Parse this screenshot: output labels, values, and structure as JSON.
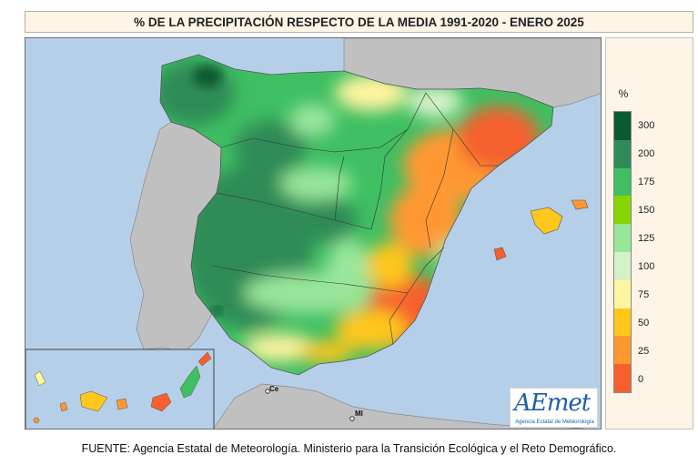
{
  "title": "% DE LA PRECIPITACIÓN RESPECTO DE LA MEDIA 1991-2020 - ENERO 2025",
  "source": "FUENTE: Agencia Estatal de Meteorología. Ministerio para la Transición Ecológica y el Reto Demográfico.",
  "legend": {
    "unit": "%",
    "labels": [
      "300",
      "200",
      "175",
      "150",
      "125",
      "100",
      "75",
      "50",
      "25",
      "0"
    ],
    "colors_top_to_bottom": [
      "#0a5a32",
      "#2e8b57",
      "#3fbf62",
      "#86d400",
      "#98e69a",
      "#d4f2c6",
      "#fff4a0",
      "#ffc61c",
      "#ff9830",
      "#f5602e"
    ]
  },
  "map": {
    "cities": [
      {
        "label": "Ce"
      },
      {
        "label": "Ml"
      }
    ]
  },
  "logo": {
    "name": "AEmet",
    "subtitle": "Agencia Estatal de Meteorología"
  }
}
